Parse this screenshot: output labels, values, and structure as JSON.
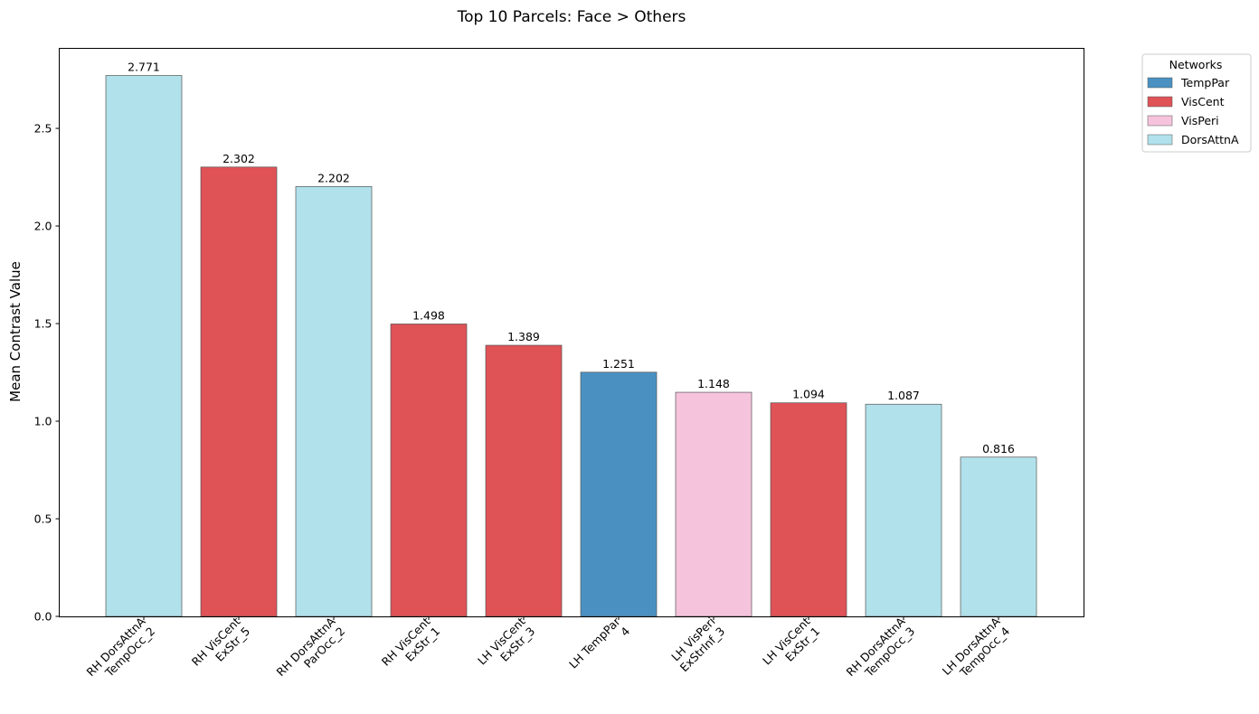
{
  "chart_data": {
    "type": "bar",
    "title": "Top 10 Parcels: Face > Others",
    "xlabel": "",
    "ylabel": "Mean Contrast Value",
    "ylim": [
      0,
      2.91
    ],
    "yticks": [
      "0.0",
      "0.5",
      "1.0",
      "1.5",
      "2.0",
      "2.5"
    ],
    "categories": [
      [
        "RH DorsAttnA",
        "TempOcc_2"
      ],
      [
        "RH VisCent",
        "ExStr_5"
      ],
      [
        "RH DorsAttnA",
        "ParOcc_2"
      ],
      [
        "RH VisCent",
        "ExStr_1"
      ],
      [
        "LH VisCent",
        "ExStr_3"
      ],
      [
        "LH TempPar",
        "4"
      ],
      [
        "LH VisPeri",
        "ExStrInf_3"
      ],
      [
        "LH VisCent",
        "ExStr_1"
      ],
      [
        "RH DorsAttnA",
        "TempOcc_3"
      ],
      [
        "LH DorsAttnA",
        "TempOcc_4"
      ]
    ],
    "values": [
      2.771,
      2.302,
      2.202,
      1.498,
      1.389,
      1.251,
      1.148,
      1.094,
      1.087,
      0.816
    ],
    "value_labels": [
      "2.771",
      "2.302",
      "2.202",
      "1.498",
      "1.389",
      "1.251",
      "1.148",
      "1.094",
      "1.087",
      "0.816"
    ],
    "networks": [
      "DorsAttnA",
      "VisCent",
      "DorsAttnA",
      "VisCent",
      "VisCent",
      "TempPar",
      "VisPeri",
      "VisCent",
      "DorsAttnA",
      "DorsAttnA"
    ],
    "legend": {
      "title": "Networks",
      "position": "top-right outside",
      "entries": [
        {
          "name": "TempPar",
          "color": "#4a91c2"
        },
        {
          "name": "VisCent",
          "color": "#df5256"
        },
        {
          "name": "VisPeri",
          "color": "#f6c3dc"
        },
        {
          "name": "DorsAttnA",
          "color": "#b1e1eb"
        }
      ]
    }
  }
}
